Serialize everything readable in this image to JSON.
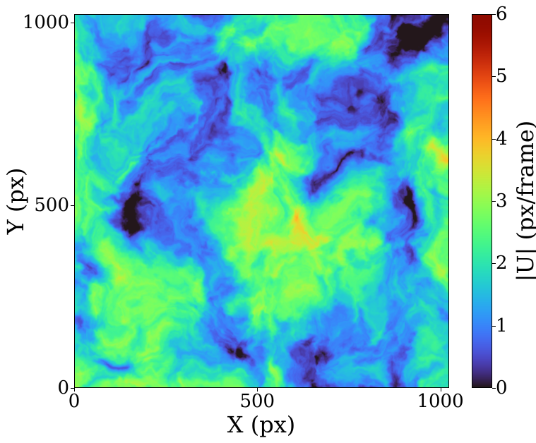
{
  "chart_data": {
    "type": "heatmap",
    "title": "",
    "xlabel": "X (px)",
    "ylabel": "Y (px)",
    "xlim": [
      0,
      1024
    ],
    "ylim": [
      0,
      1024
    ],
    "xticks": [
      {
        "value": 0,
        "label": "0"
      },
      {
        "value": 500,
        "label": "500"
      },
      {
        "value": 1000,
        "label": "1000"
      }
    ],
    "yticks": [
      {
        "value": 0,
        "label": "0"
      },
      {
        "value": 500,
        "label": "500"
      },
      {
        "value": 1000,
        "label": "1000"
      }
    ],
    "colorbar": {
      "label": "|U| (px/frame)",
      "colormap": "turbo",
      "range": [
        0,
        6
      ],
      "ticks": [
        {
          "value": 0,
          "label": "0"
        },
        {
          "value": 1,
          "label": "1"
        },
        {
          "value": 2,
          "label": "2"
        },
        {
          "value": 3,
          "label": "3"
        },
        {
          "value": 4,
          "label": "4"
        },
        {
          "value": 5,
          "label": "5"
        },
        {
          "value": 6,
          "label": "6"
        }
      ]
    },
    "value_range_observed": [
      0,
      4.8
    ],
    "grid": false
  }
}
